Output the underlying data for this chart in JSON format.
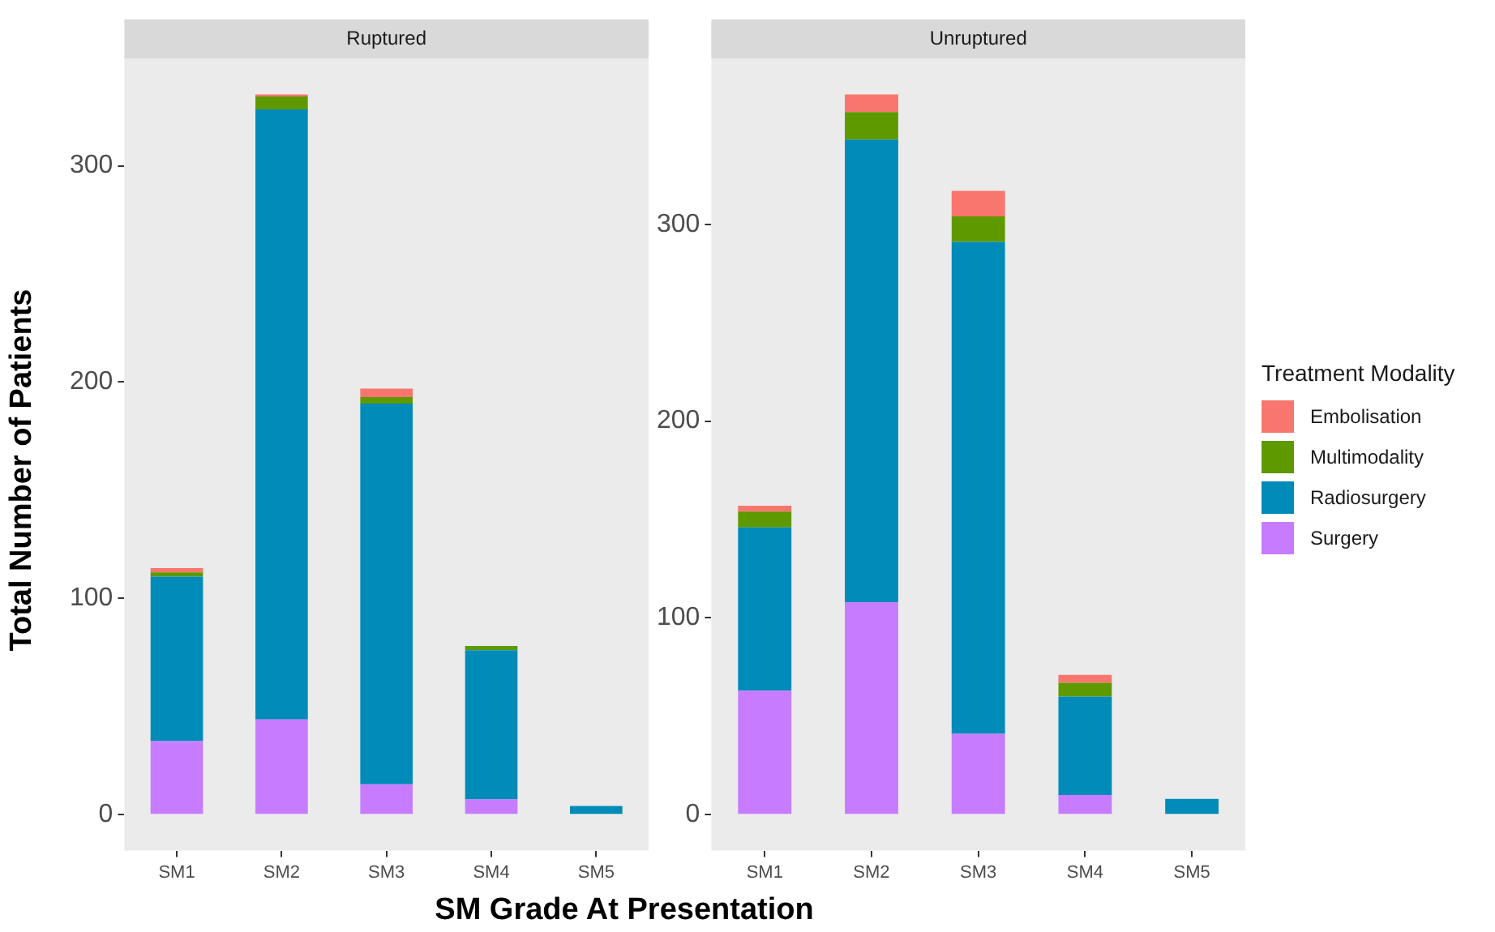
{
  "chart_data": [
    {
      "type": "bar",
      "title": "Ruptured",
      "xlabel": "SM Grade At Presentation",
      "ylabel": "Total Number of Patients",
      "categories": [
        "SM1",
        "SM2",
        "SM3",
        "SM4",
        "SM5"
      ],
      "stacked": true,
      "ylim": [
        -16.65,
        349.65
      ],
      "yticks": [
        0,
        100,
        200,
        300
      ],
      "grid": false,
      "legend": false,
      "series": [
        {
          "color": "#c77cff",
          "values": [
            34,
            44,
            14,
            7,
            0
          ]
        },
        {
          "color": "#008bb9",
          "values": [
            76,
            282,
            176,
            69,
            4
          ]
        },
        {
          "color": "#5f9900",
          "values": [
            2,
            6,
            3,
            2,
            0
          ]
        },
        {
          "color": "#f8766d",
          "values": [
            2,
            1,
            4,
            0,
            0
          ]
        }
      ]
    },
    {
      "type": "bar",
      "title": "Unruptured",
      "legend_title": "Treatment Modality",
      "categories": [
        "SM1",
        "SM2",
        "SM3",
        "SM4",
        "SM5"
      ],
      "stacked": true,
      "ylim": [
        -18.3,
        384.3
      ],
      "yticks": [
        0,
        100,
        200,
        300
      ],
      "grid": false,
      "legend": "right",
      "series": [
        {
          "name": "Surgery",
          "color": "#c77cff",
          "values": [
            63,
            108,
            41,
            10,
            0
          ]
        },
        {
          "name": "Radiosurgery",
          "color": "#008bb9",
          "values": [
            83,
            235,
            250,
            50,
            8
          ]
        },
        {
          "name": "Multimodality",
          "color": "#5f9900",
          "values": [
            8,
            14,
            13,
            7,
            0
          ]
        },
        {
          "name": "Embolisation",
          "color": "#f8766d",
          "values": [
            3,
            9,
            13,
            4,
            0
          ]
        }
      ]
    }
  ]
}
